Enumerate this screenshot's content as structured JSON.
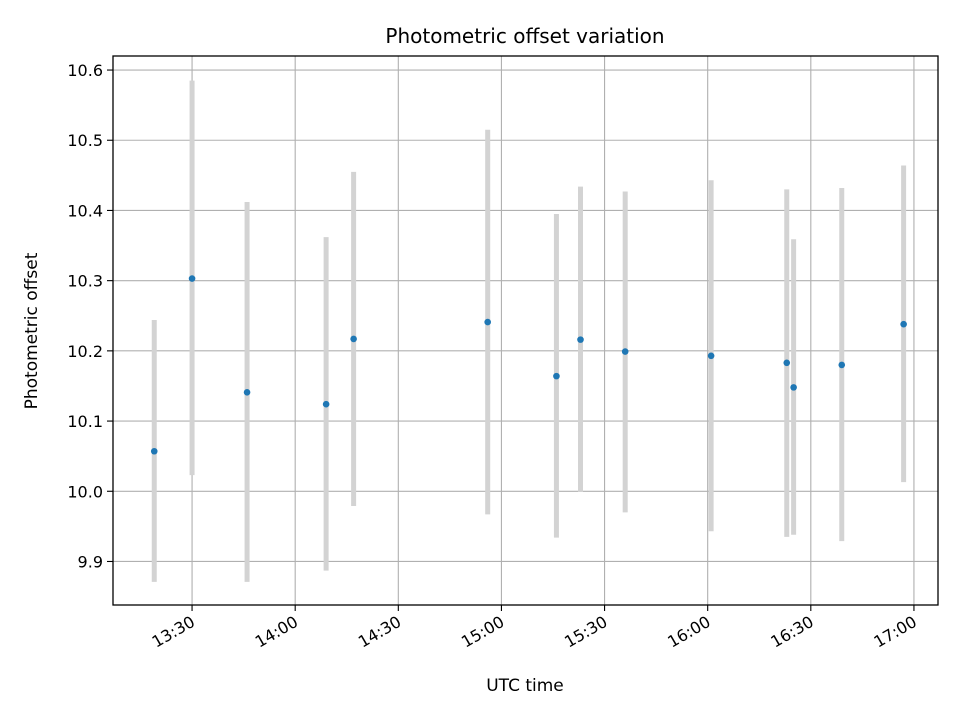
{
  "chart_data": {
    "type": "scatter",
    "title": "Photometric offset variation",
    "xlabel": "UTC time",
    "ylabel": "Photometric offset",
    "x_tick_labels": [
      "13:30",
      "14:00",
      "14:30",
      "15:00",
      "15:30",
      "16:00",
      "16:30",
      "17:00"
    ],
    "y_tick_labels": [
      "9.9",
      "10.0",
      "10.1",
      "10.2",
      "10.3",
      "10.4",
      "10.5",
      "10.6"
    ],
    "xlim": [
      "13:07",
      "17:07"
    ],
    "ylim": [
      9.838,
      10.62
    ],
    "grid": true,
    "point_color": "#1f77b4",
    "errorbar_color": "#d3d3d3",
    "points": [
      {
        "x": "13:19",
        "y": 10.057,
        "low": 9.871,
        "high": 10.244
      },
      {
        "x": "13:30",
        "y": 10.303,
        "low": 10.023,
        "high": 10.585
      },
      {
        "x": "13:46",
        "y": 10.141,
        "low": 9.871,
        "high": 10.412
      },
      {
        "x": "14:09",
        "y": 10.124,
        "low": 9.887,
        "high": 10.362
      },
      {
        "x": "14:17",
        "y": 10.217,
        "low": 9.979,
        "high": 10.455
      },
      {
        "x": "14:56",
        "y": 10.241,
        "low": 9.967,
        "high": 10.515
      },
      {
        "x": "15:16",
        "y": 10.164,
        "low": 9.934,
        "high": 10.395
      },
      {
        "x": "15:23",
        "y": 10.216,
        "low": 9.999,
        "high": 10.434
      },
      {
        "x": "15:36",
        "y": 10.199,
        "low": 9.97,
        "high": 10.427
      },
      {
        "x": "16:01",
        "y": 10.193,
        "low": 9.943,
        "high": 10.443
      },
      {
        "x": "16:23",
        "y": 10.183,
        "low": 9.935,
        "high": 10.43
      },
      {
        "x": "16:25",
        "y": 10.148,
        "low": 9.938,
        "high": 10.359
      },
      {
        "x": "16:39",
        "y": 10.18,
        "low": 9.929,
        "high": 10.432
      },
      {
        "x": "16:57",
        "y": 10.238,
        "low": 10.013,
        "high": 10.464
      }
    ]
  }
}
